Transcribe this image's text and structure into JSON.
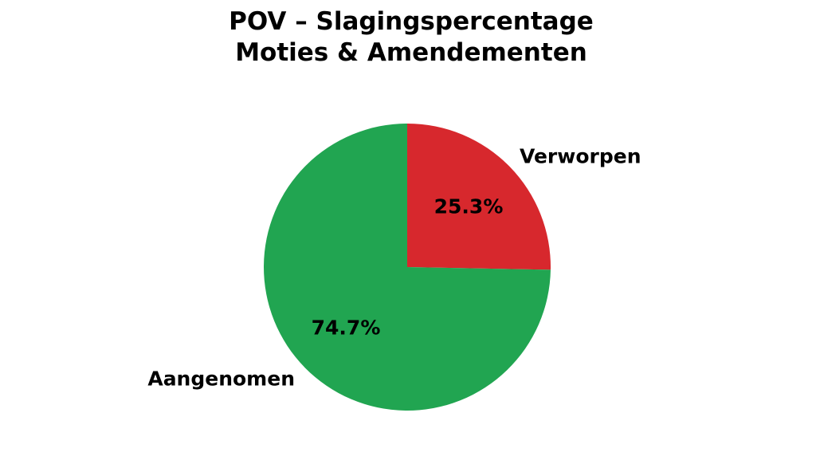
{
  "chart_data": {
    "type": "pie",
    "title": "POV – Slagingspercentage\nMoties & Amendementen",
    "background": "#ffffff",
    "start_angle_deg": 0,
    "direction": "clockwise",
    "legend": "none",
    "categories": [
      "Verworpen",
      "Aangenomen"
    ],
    "values": [
      25.3,
      74.7
    ],
    "slices": [
      {
        "label": "Verworpen",
        "value": 25.3,
        "pct_label": "25.3%",
        "color": "#d7282d"
      },
      {
        "label": "Aangenomen",
        "value": 74.7,
        "pct_label": "74.7%",
        "color": "#21a551"
      }
    ],
    "text_color": "#000000"
  }
}
